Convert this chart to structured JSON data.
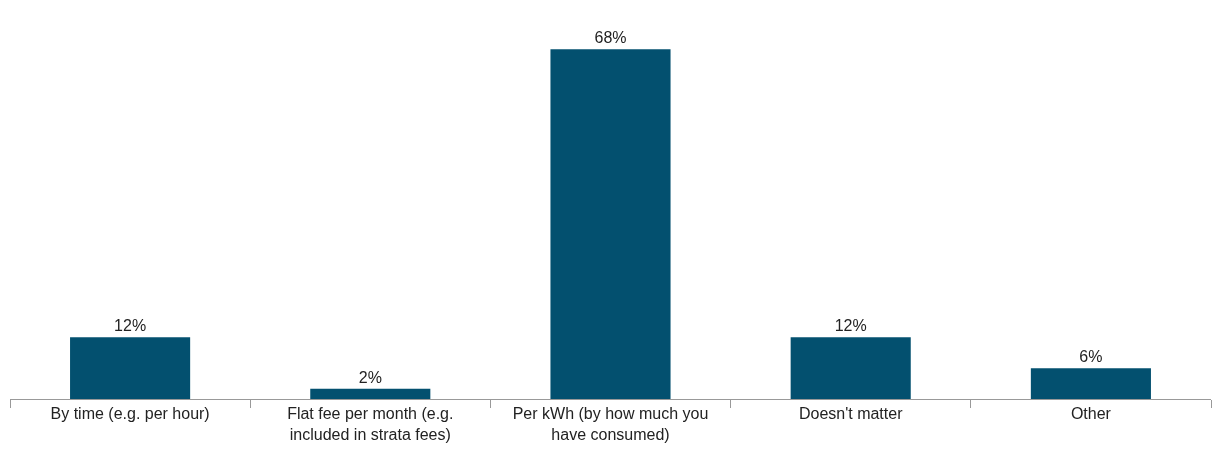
{
  "chart_data": {
    "type": "bar",
    "categories": [
      "By time (e.g. per hour)",
      "Flat fee per month (e.g. included in strata fees)",
      "Per kWh (by how much you have consumed)",
      "Doesn't matter",
      "Other"
    ],
    "values": [
      12,
      2,
      68,
      12,
      6
    ],
    "value_labels": [
      "12%",
      "2%",
      "68%",
      "12%",
      "6%"
    ],
    "color": "#03506f",
    "tick_labels": "x"
  }
}
